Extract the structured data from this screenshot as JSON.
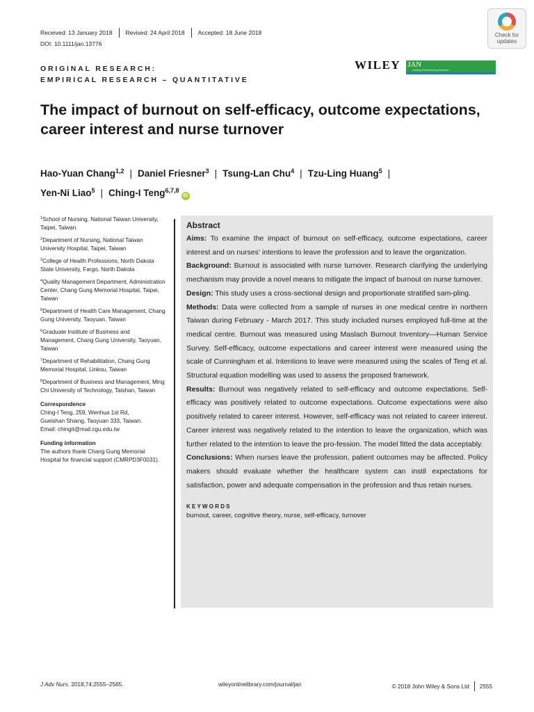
{
  "header": {
    "received": "Received: 13 January 2018",
    "revised": "Revised: 24 April 2018",
    "accepted": "Accepted: 18 June 2018",
    "doi": "DOI: 10.1111/jan.13776",
    "badge_line1": "Check for",
    "badge_line2": "updates"
  },
  "section_label": {
    "line1": "ORIGINAL RESEARCH:",
    "line2": "EMPIRICAL RESEARCH – QUANTITATIVE"
  },
  "publisher": {
    "name": "WILEY",
    "journal_abbr": "JAN",
    "journal_tagline": "Leading Global Nursing Research"
  },
  "title": "The impact of burnout on self-efficacy, outcome expectations, career interest and nurse turnover",
  "authors": [
    {
      "name": "Hao-Yuan Chang",
      "aff": "1,2"
    },
    {
      "name": "Daniel Friesner",
      "aff": "3"
    },
    {
      "name": "Tsung-Lan Chu",
      "aff": "4"
    },
    {
      "name": "Tzu-Ling Huang",
      "aff": "5"
    },
    {
      "name": "Yen-Ni Liao",
      "aff": "5"
    },
    {
      "name": "Ching-I Teng",
      "aff": "6,7,8"
    }
  ],
  "separator": "|",
  "orcid_label": "iD",
  "affiliations": [
    {
      "num": "1",
      "text": "School of Nursing, National Taiwan University, Taipei, Taiwan"
    },
    {
      "num": "2",
      "text": "Department of Nursing, National Taiwan University Hospital, Taipei, Taiwan"
    },
    {
      "num": "3",
      "text": "College of Health Professions, North Dakota State University, Fargo, North Dakota"
    },
    {
      "num": "4",
      "text": "Quality Management Department, Administration Center, Chang Gung Memorial Hospital, Taipei, Taiwan"
    },
    {
      "num": "5",
      "text": "Department of Health Care Management, Chang Gung University, Taoyuan, Taiwan"
    },
    {
      "num": "6",
      "text": "Graduate Institute of Business and Management, Chang Gung University, Taoyuan, Taiwan"
    },
    {
      "num": "7",
      "text": "Department of Rehabilitation, Chang Gung Memorial Hospital, Linkou, Taiwan"
    },
    {
      "num": "8",
      "text": "Department of Business and Management, Ming Chi University of Technology, Taishan, Taiwan"
    }
  ],
  "correspondence": {
    "heading": "Correspondence",
    "line1": "Ching-I Teng, 259, Wenhua 1st Rd,",
    "line2": "Gueishan Shiang, Taoyuan 333, Taiwan.",
    "line3": "Email: chingit@mail.cgu.edu.tw"
  },
  "funding": {
    "heading": "Funding information",
    "text": "The authors thank Chang Gung Memorial Hospital for financial support (CMRPD3F0031)."
  },
  "abstract": {
    "heading": "Abstract",
    "sections": [
      {
        "label": "Aims:",
        "text": "To examine the impact of burnout on self-efficacy, outcome expectations, career interest and on nurses' intentions to leave the profession and to leave the organization."
      },
      {
        "label": "Background:",
        "text": "Burnout is associated with nurse turnover. Research clarifying the underlying mechanism may provide a novel means to mitigate the impact of burnout on nurse turnover."
      },
      {
        "label": "Design:",
        "text": "This study uses a cross-sectional design and proportionate stratified sam-pling."
      },
      {
        "label": "Methods:",
        "text": "Data were collected from a sample of nurses in one medical centre in northern Taiwan during February - March 2017. This study included nurses employed full-time at the medical centre. Burnout was measured using Maslach Burnout Inventory—Human Service Survey. Self-efficacy, outcome expectations and career interest were measured using the scale of Cunningham et al. Intentions to leave were measured using the scales of Teng et al. Structural equation modelling was used to assess the proposed framework."
      },
      {
        "label": "Results:",
        "text": "Burnout was negatively related to self-efficacy and outcome expectations. Self-efficacy was positively related to outcome expectations. Outcome expectations were also positively related to career interest. However, self-efficacy was not related to career interest. Career interest was negatively related to the intention to leave the organization, which was further related to the intention to leave the pro-fession. The model fitted the data acceptably."
      },
      {
        "label": "Conclusions:",
        "text": "When nurses leave the profession, patient outcomes may be affected. Policy makers should evaluate whether the healthcare system can instil expectations for satisfaction, power and adequate compensation in the profession and thus retain nurses."
      }
    ],
    "keywords_heading": "KEYWORDS",
    "keywords": "burnout, career, cognitive theory, nurse, self-efficacy, turnover"
  },
  "footer": {
    "citation_journal": "J Adv Nurs.",
    "citation_rest": " 2018;74:2555–2565.",
    "url": "wileyonlinelibrary.com/journal/jan",
    "copyright": "© 2018 John Wiley & Sons Ltd",
    "page": "2555"
  }
}
